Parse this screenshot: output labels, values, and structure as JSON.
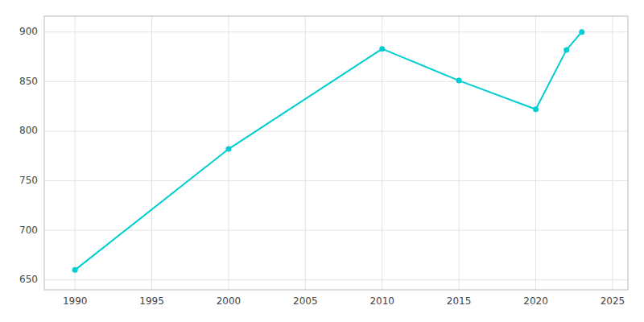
{
  "chart_data": {
    "type": "line",
    "x": [
      1990,
      2000,
      2010,
      2015,
      2020,
      2022,
      2023
    ],
    "values": [
      660,
      782,
      883,
      851,
      822,
      882,
      900
    ],
    "color": "#00CED1",
    "marker": "circle",
    "xlim": [
      1988,
      2026
    ],
    "ylim": [
      640,
      916
    ],
    "xticks": [
      1990,
      1995,
      2000,
      2005,
      2010,
      2015,
      2020,
      2025
    ],
    "yticks": [
      650,
      700,
      750,
      800,
      850,
      900
    ],
    "grid": true
  }
}
